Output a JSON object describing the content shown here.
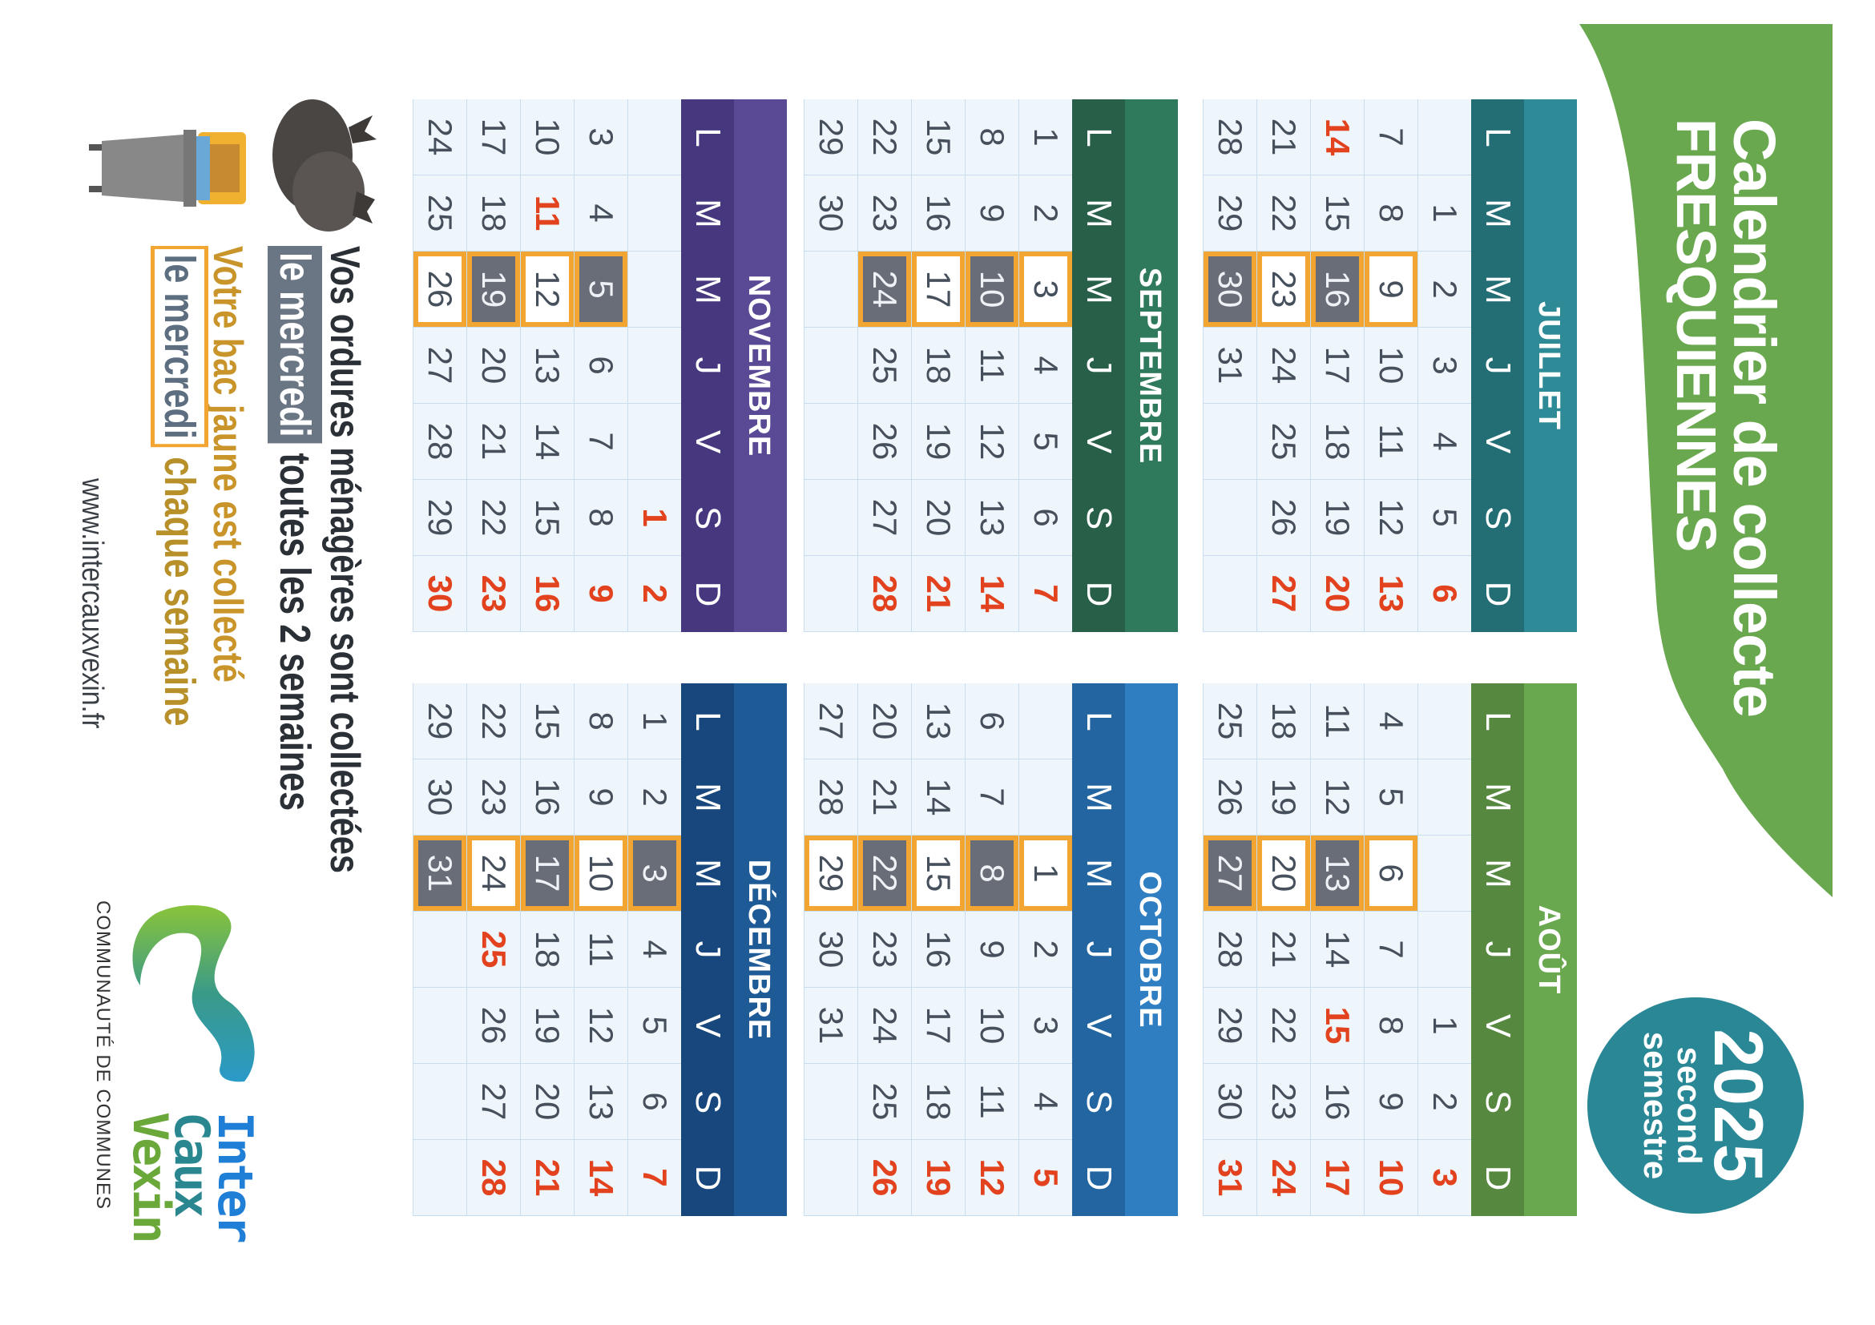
{
  "header": {
    "title_line1": "Calendrier de collecte",
    "title_line2": "FRESQUIENNES",
    "banner_color": "#6aa84f",
    "badge": {
      "year": "2025",
      "line1": "second",
      "line2": "semestre",
      "color": "#2a8796"
    }
  },
  "day_letters": [
    "L",
    "M",
    "M",
    "J",
    "V",
    "S",
    "D"
  ],
  "colors": {
    "holiday_red": "#e2421e",
    "collect_box": "#f2a531",
    "collect_gray": "#686d77",
    "cell_bg": "#eef5fb"
  },
  "months": [
    {
      "name": "JUILLET",
      "color": "#2e8a96",
      "dark": "#236e74",
      "weeks": [
        [
          null,
          1,
          2,
          3,
          4,
          5,
          6
        ],
        [
          7,
          8,
          9,
          10,
          11,
          12,
          13
        ],
        [
          14,
          15,
          16,
          17,
          18,
          19,
          20
        ],
        [
          21,
          22,
          23,
          24,
          25,
          26,
          27
        ],
        [
          28,
          29,
          30,
          31,
          null,
          null,
          null
        ]
      ],
      "red_days": [
        6,
        13,
        14,
        20,
        27
      ],
      "boxed_days": [
        9,
        23
      ],
      "gray_days": [
        16,
        30
      ]
    },
    {
      "name": "AOÛT",
      "color": "#6aa84f",
      "dark": "#56893f",
      "weeks": [
        [
          null,
          null,
          null,
          null,
          1,
          2,
          3
        ],
        [
          4,
          5,
          6,
          7,
          8,
          9,
          10
        ],
        [
          11,
          12,
          13,
          14,
          15,
          16,
          17
        ],
        [
          18,
          19,
          20,
          21,
          22,
          23,
          24
        ],
        [
          25,
          26,
          27,
          28,
          29,
          30,
          31
        ]
      ],
      "red_days": [
        3,
        10,
        15,
        17,
        24,
        31
      ],
      "boxed_days": [
        6,
        20
      ],
      "gray_days": [
        13,
        27
      ]
    },
    {
      "name": "SEPTEMBRE",
      "color": "#2f7a5c",
      "dark": "#285f48",
      "weeks": [
        [
          1,
          2,
          3,
          4,
          5,
          6,
          7
        ],
        [
          8,
          9,
          10,
          11,
          12,
          13,
          14
        ],
        [
          15,
          16,
          17,
          18,
          19,
          20,
          21
        ],
        [
          22,
          23,
          24,
          25,
          26,
          27,
          28
        ],
        [
          29,
          30,
          null,
          null,
          null,
          null,
          null
        ]
      ],
      "red_days": [
        7,
        14,
        21,
        28
      ],
      "boxed_days": [
        3,
        17
      ],
      "gray_days": [
        10,
        24
      ]
    },
    {
      "name": "OCTOBRE",
      "color": "#2f7ec2",
      "dark": "#2265a0",
      "weeks": [
        [
          null,
          null,
          1,
          2,
          3,
          4,
          5
        ],
        [
          6,
          7,
          8,
          9,
          10,
          11,
          12
        ],
        [
          13,
          14,
          15,
          16,
          17,
          18,
          19
        ],
        [
          20,
          21,
          22,
          23,
          24,
          25,
          26
        ],
        [
          27,
          28,
          29,
          30,
          31,
          null,
          null
        ]
      ],
      "red_days": [
        5,
        12,
        19,
        26
      ],
      "boxed_days": [
        1,
        15,
        29
      ],
      "gray_days": [
        8,
        22
      ]
    },
    {
      "name": "NOVEMBRE",
      "color": "#5a4a96",
      "dark": "#47377e",
      "weeks": [
        [
          null,
          null,
          null,
          null,
          null,
          1,
          2
        ],
        [
          3,
          4,
          5,
          6,
          7,
          8,
          9
        ],
        [
          10,
          11,
          12,
          13,
          14,
          15,
          16
        ],
        [
          17,
          18,
          19,
          20,
          21,
          22,
          23
        ],
        [
          24,
          25,
          26,
          27,
          28,
          29,
          30
        ]
      ],
      "red_days": [
        1,
        2,
        9,
        11,
        16,
        23,
        30
      ],
      "boxed_days": [
        12,
        26
      ],
      "gray_days": [
        5,
        19
      ]
    },
    {
      "name": "DÉCEMBRE",
      "color": "#1e5a96",
      "dark": "#17477c",
      "weeks": [
        [
          1,
          2,
          3,
          4,
          5,
          6,
          7
        ],
        [
          8,
          9,
          10,
          11,
          12,
          13,
          14
        ],
        [
          15,
          16,
          17,
          18,
          19,
          20,
          21
        ],
        [
          22,
          23,
          24,
          25,
          26,
          27,
          28
        ],
        [
          29,
          30,
          31,
          null,
          null,
          null,
          null
        ]
      ],
      "red_days": [
        7,
        14,
        21,
        25,
        28
      ],
      "boxed_days": [
        10,
        24
      ],
      "gray_days": [
        3,
        17,
        31
      ]
    }
  ],
  "info": {
    "line1": "Vos ordures ménagères sont collectées",
    "line2_highlight": "le mercredi",
    "line2_rest": " toutes les 2 semaines",
    "line3": "Votre bac jaune est collecté",
    "line4_highlight": "le mercredi",
    "line4_rest": " chaque semaine",
    "url": "www.intercauxvexin.fr",
    "icons": [
      "garbage-bag-icon",
      "yellow-bin-icon"
    ]
  },
  "logo": {
    "line1": "Inter",
    "line2": "Caux",
    "line3": "Vexin",
    "tagline": "COMMUNAUTÉ DE COMMUNES"
  }
}
